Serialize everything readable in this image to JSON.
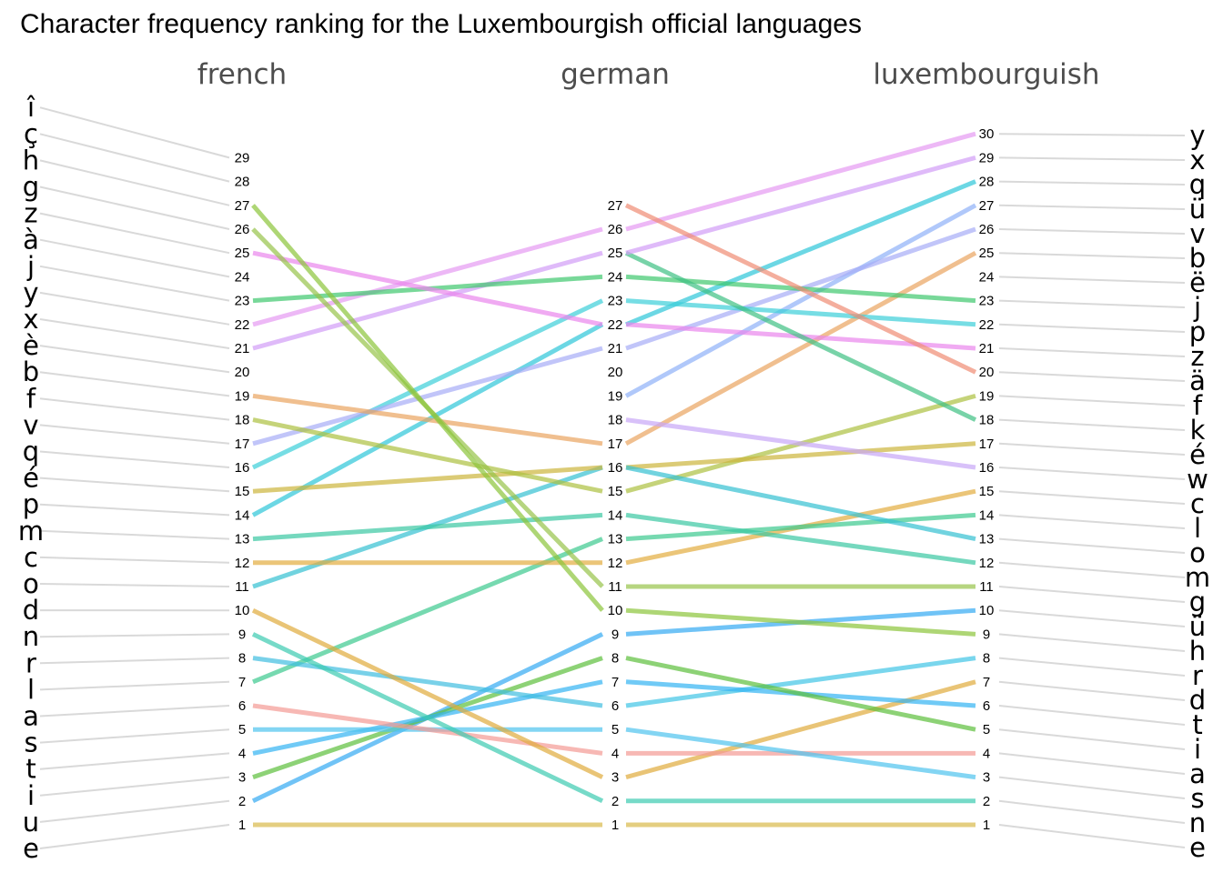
{
  "chart_data": {
    "type": "line",
    "title": "Character frequency ranking for the Luxembourgish official languages",
    "columns": [
      "french",
      "german",
      "luxembourguish"
    ],
    "left_letters": [
      "e",
      "u",
      "i",
      "t",
      "s",
      "a",
      "l",
      "r",
      "n",
      "d",
      "o",
      "c",
      "m",
      "p",
      "é",
      "q",
      "v",
      "f",
      "b",
      "è",
      "x",
      "y",
      "j",
      "à",
      "z",
      "g",
      "h",
      "ç",
      "î"
    ],
    "right_letters": [
      "e",
      "n",
      "s",
      "a",
      "i",
      "t",
      "d",
      "r",
      "h",
      "ü",
      "g",
      "m",
      "o",
      "l",
      "c",
      "w",
      "é",
      "k",
      "f",
      "ä",
      "z",
      "p",
      "j",
      "ë",
      "b",
      "v",
      "ü",
      "q",
      "x",
      "y"
    ],
    "french_ranks": [
      1,
      2,
      3,
      4,
      5,
      6,
      7,
      8,
      9,
      10,
      11,
      12,
      13,
      14,
      15,
      16,
      17,
      18,
      19,
      20,
      21,
      22,
      23,
      24,
      25,
      26,
      27,
      28,
      29
    ],
    "german_ranks": [
      1,
      2,
      3,
      4,
      5,
      6,
      7,
      8,
      9,
      10,
      11,
      12,
      13,
      14,
      15,
      16,
      17,
      18,
      19,
      20,
      21,
      22,
      23,
      24,
      25,
      26,
      27
    ],
    "luxembourguish_ranks": [
      1,
      2,
      3,
      4,
      5,
      6,
      7,
      8,
      9,
      10,
      11,
      12,
      13,
      14,
      15,
      16,
      17,
      18,
      19,
      20,
      21,
      22,
      23,
      24,
      25,
      26,
      27,
      28,
      29,
      30
    ],
    "segments_french_german": [
      {
        "from": 1,
        "to": 1,
        "color": "#d9b94a"
      },
      {
        "from": 2,
        "to": 9,
        "color": "#33a9f2"
      },
      {
        "from": 3,
        "to": 8,
        "color": "#5cbf3c"
      },
      {
        "from": 4,
        "to": 7,
        "color": "#33b4f2"
      },
      {
        "from": 5,
        "to": 5,
        "color": "#4ec3ee"
      },
      {
        "from": 6,
        "to": 4,
        "color": "#f49a94"
      },
      {
        "from": 7,
        "to": 13,
        "color": "#3cc98e"
      },
      {
        "from": 8,
        "to": 6,
        "color": "#40bde0"
      },
      {
        "from": 9,
        "to": 2,
        "color": "#3ccbb0"
      },
      {
        "from": 10,
        "to": 3,
        "color": "#e0ab3c"
      },
      {
        "from": 11,
        "to": 16,
        "color": "#34c1d2"
      },
      {
        "from": 12,
        "to": 12,
        "color": "#e2ad3f"
      },
      {
        "from": 13,
        "to": 14,
        "color": "#3ac7a2"
      },
      {
        "from": 14,
        "to": 22,
        "color": "#2ec6d8"
      },
      {
        "from": 15,
        "to": 16,
        "color": "#ccb53c"
      },
      {
        "from": 16,
        "to": 23,
        "color": "#3ccfd8"
      },
      {
        "from": 17,
        "to": 21,
        "color": "#a7acf6"
      },
      {
        "from": 18,
        "to": 15,
        "color": "#adc040"
      },
      {
        "from": 19,
        "to": 17,
        "color": "#eaa460"
      },
      {
        "from": 21,
        "to": 25,
        "color": "#d19cf6"
      },
      {
        "from": 22,
        "to": 26,
        "color": "#e59af2"
      },
      {
        "from": 23,
        "to": 24,
        "color": "#3ec86e"
      },
      {
        "from": 25,
        "to": 22,
        "color": "#ea86ec"
      },
      {
        "from": 26,
        "to": 11,
        "color": "#97c34a"
      },
      {
        "from": 27,
        "to": 10,
        "color": "#8cc43a"
      }
    ],
    "segments_german_luxembourguish": [
      {
        "from": 1,
        "to": 1,
        "color": "#d9b94a"
      },
      {
        "from": 2,
        "to": 2,
        "color": "#3ccbb0"
      },
      {
        "from": 3,
        "to": 7,
        "color": "#e0ab3c"
      },
      {
        "from": 4,
        "to": 4,
        "color": "#f49a94"
      },
      {
        "from": 5,
        "to": 3,
        "color": "#4ec3ee"
      },
      {
        "from": 6,
        "to": 8,
        "color": "#40c5e6"
      },
      {
        "from": 7,
        "to": 6,
        "color": "#33b4f2"
      },
      {
        "from": 8,
        "to": 5,
        "color": "#5cbf3c"
      },
      {
        "from": 9,
        "to": 10,
        "color": "#33a9f2"
      },
      {
        "from": 10,
        "to": 9,
        "color": "#8cc43a"
      },
      {
        "from": 11,
        "to": 11,
        "color": "#97c34a"
      },
      {
        "from": 12,
        "to": 15,
        "color": "#e2ad3f"
      },
      {
        "from": 13,
        "to": 14,
        "color": "#3cc98e"
      },
      {
        "from": 14,
        "to": 12,
        "color": "#3ac7a2"
      },
      {
        "from": 15,
        "to": 19,
        "color": "#adc040"
      },
      {
        "from": 16,
        "to": 17,
        "color": "#ccb53c"
      },
      {
        "from": 16,
        "to": 13,
        "color": "#34c1d2"
      },
      {
        "from": 17,
        "to": 25,
        "color": "#eaa460"
      },
      {
        "from": 18,
        "to": 16,
        "color": "#c7a6f6"
      },
      {
        "from": 19,
        "to": 27,
        "color": "#8fb0f8"
      },
      {
        "from": 21,
        "to": 26,
        "color": "#a7acf6"
      },
      {
        "from": 22,
        "to": 28,
        "color": "#2ec6d8"
      },
      {
        "from": 22,
        "to": 21,
        "color": "#ea86ec"
      },
      {
        "from": 23,
        "to": 22,
        "color": "#3ccfd8"
      },
      {
        "from": 24,
        "to": 23,
        "color": "#3ec86e"
      },
      {
        "from": 25,
        "to": 18,
        "color": "#3ec083"
      },
      {
        "from": 25,
        "to": 29,
        "color": "#d19cf6"
      },
      {
        "from": 26,
        "to": 30,
        "color": "#e59af2"
      },
      {
        "from": 27,
        "to": 20,
        "color": "#f08c74"
      }
    ],
    "connector_color": "#d9d9d9"
  }
}
